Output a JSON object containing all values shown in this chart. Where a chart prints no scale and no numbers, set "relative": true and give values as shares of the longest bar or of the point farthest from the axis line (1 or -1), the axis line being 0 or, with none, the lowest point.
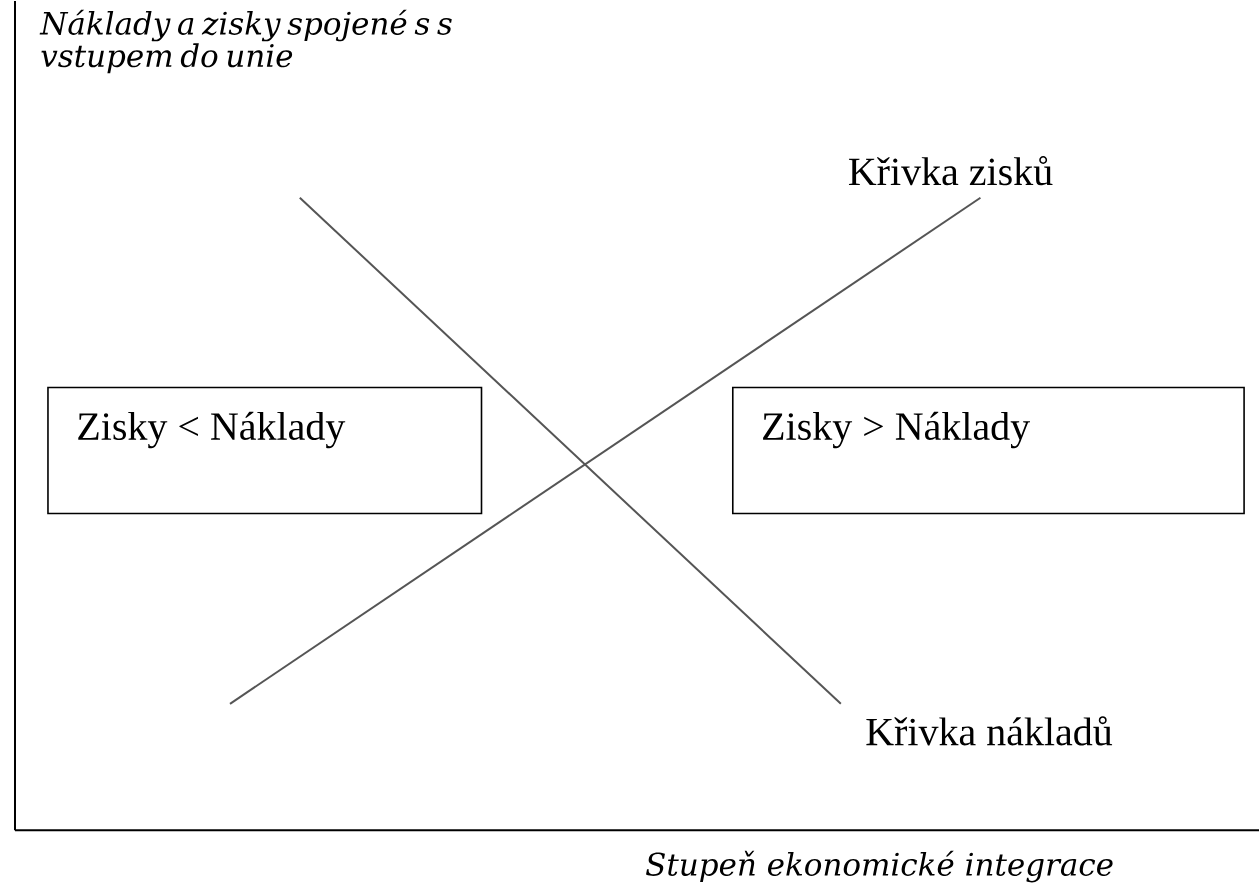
{
  "chart_data": {
    "type": "line",
    "relative": true,
    "tick_labels": false,
    "marker": "none",
    "xlabel": "Stupeň ekonomické integrace",
    "ylabel": "Náklady a zisky spojené s s vstupem do unie",
    "categories": [
      null,
      null,
      null,
      null,
      null,
      null,
      null,
      null,
      null,
      null,
      null,
      null,
      null,
      null,
      null,
      null,
      null,
      null,
      null,
      null,
      null,
      null,
      null,
      null,
      null,
      null,
      null,
      null,
      null,
      null,
      null,
      null,
      null,
      null,
      null,
      null,
      null,
      null,
      null,
      null,
      null,
      null,
      null,
      null
    ],
    "series": [
      {
        "name": "Křivka zisků",
        "color": "#555555",
        "values": [
          0.2,
          null,
          null,
          null,
          null,
          null,
          null,
          null,
          null,
          null,
          null,
          null,
          null,
          null,
          null,
          null,
          null,
          null,
          null,
          null,
          null,
          null,
          null,
          null,
          null,
          null,
          null,
          null,
          null,
          null,
          null,
          null,
          null,
          null,
          null,
          null,
          null,
          null,
          null,
          null,
          null,
          null,
          null,
          1
        ]
      },
      {
        "name": "Křivka nákladů",
        "color": "#555555",
        "values": [
          null,
          null,
          null,
          null,
          1,
          null,
          null,
          null,
          null,
          null,
          null,
          null,
          null,
          null,
          null,
          null,
          null,
          null,
          null,
          null,
          null,
          null,
          null,
          null,
          null,
          null,
          null,
          null,
          null,
          null,
          null,
          null,
          null,
          null,
          null,
          0.2,
          null,
          null,
          null,
          null,
          null,
          null,
          null,
          null
        ]
      }
    ],
    "annotations": [
      "Zisky < Náklady",
      "Zisky > Náklady"
    ]
  }
}
